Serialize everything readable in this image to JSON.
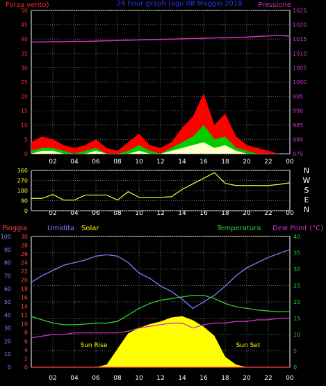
{
  "header": {
    "left_label": "Forza vento)",
    "center_label": "24 hour graph (ago 08 Maggio 2018",
    "right_label": "Pressione"
  },
  "colors": {
    "wind_axis": "#ff2a2a",
    "wind_max": "#ff0000",
    "wind_avg": "#00cc00",
    "wind_min": "#ffffcc",
    "pressure": "#cc33cc",
    "direction": "#ffff33",
    "rain": "#ff4444",
    "humidity": "#8080ff",
    "solar": "#ffff00",
    "temperature": "#33cc33",
    "dewpoint": "#cc33cc",
    "accent_blue": "#3030ff",
    "grid": "#666666"
  },
  "wind_pressure_chart": {
    "type": "area",
    "wind_ticks": [
      "0",
      "5",
      "10",
      "15",
      "20",
      "25",
      "30",
      "35",
      "40",
      "45",
      "50"
    ],
    "pressure_ticks": [
      "975",
      "980",
      "985",
      "990",
      "995",
      "1000",
      "1005",
      "1010",
      "1015",
      "1020",
      "1025"
    ],
    "wind_ylim": [
      0,
      50
    ],
    "pressure_ylim": [
      975,
      1025
    ],
    "hours": [
      0,
      1,
      2,
      3,
      4,
      5,
      6,
      7,
      8,
      9,
      10,
      11,
      12,
      13,
      14,
      15,
      16,
      17,
      18,
      19,
      20,
      21,
      22,
      23,
      24
    ],
    "wind_max": [
      4,
      6,
      5,
      3,
      2,
      3,
      5,
      2,
      1,
      4,
      7,
      3,
      2,
      4,
      9,
      13,
      21,
      10,
      14,
      6,
      3,
      2,
      1,
      0,
      0
    ],
    "wind_avg": [
      1,
      2,
      2,
      1,
      0,
      1,
      2,
      0,
      0,
      1,
      3,
      1,
      0,
      2,
      4,
      6,
      10,
      5,
      6,
      2,
      1,
      0,
      0,
      0,
      0
    ],
    "wind_min": [
      0,
      1,
      1,
      0,
      0,
      0,
      1,
      0,
      0,
      0,
      1,
      0,
      0,
      1,
      2,
      3,
      4,
      2,
      3,
      1,
      0,
      0,
      0,
      0,
      0
    ],
    "pressure": [
      1014.0,
      1014.0,
      1014.1,
      1014.1,
      1014.2,
      1014.2,
      1014.3,
      1014.4,
      1014.5,
      1014.6,
      1014.7,
      1014.8,
      1014.9,
      1015.0,
      1015.1,
      1015.2,
      1015.3,
      1015.4,
      1015.5,
      1015.6,
      1015.7,
      1015.9,
      1016.1,
      1016.3,
      1016.0
    ]
  },
  "direction_chart": {
    "type": "line",
    "ticks": [
      "0",
      "90",
      "180",
      "270",
      "360"
    ],
    "compass": [
      "N",
      "W",
      "S",
      "E",
      "N"
    ],
    "ylim": [
      0,
      360
    ],
    "hours": [
      0,
      1,
      2,
      3,
      4,
      5,
      6,
      7,
      8,
      9,
      10,
      11,
      12,
      13,
      14,
      15,
      16,
      17,
      18,
      19,
      20,
      21,
      22,
      23,
      24
    ],
    "direction": [
      110,
      110,
      145,
      95,
      95,
      140,
      140,
      140,
      95,
      170,
      120,
      120,
      120,
      125,
      190,
      240,
      290,
      340,
      245,
      225,
      225,
      225,
      225,
      235,
      250
    ]
  },
  "weather_chart": {
    "type": "line",
    "labels": {
      "rain": "Pioggia",
      "humidity": "Umidita",
      "solar": "Solar",
      "temperature": "Temperatura",
      "dewpoint": "Dew Point (°C)"
    },
    "humidity_ticks": [
      "0",
      "10",
      "20",
      "30",
      "40",
      "50",
      "60",
      "70",
      "80",
      "90",
      "100"
    ],
    "rain_ticks": [
      "0",
      "2",
      "4",
      "6",
      "8",
      "10",
      "12",
      "14",
      "16",
      "18",
      "20",
      "22",
      "24",
      "26",
      "28",
      "30"
    ],
    "temp_ticks": [
      "0",
      "5",
      "10",
      "15",
      "20",
      "25",
      "30",
      "35",
      "40"
    ],
    "humidity_ylim": [
      0,
      100
    ],
    "rain_ylim": [
      0,
      30
    ],
    "temp_ylim": [
      0,
      40
    ],
    "annotations": {
      "sunrise": "Sun Rise",
      "sunset": "Sun Set"
    },
    "x_ticks": [
      "02",
      "04",
      "06",
      "08",
      "10",
      "12",
      "14",
      "16",
      "18",
      "20",
      "22",
      "00"
    ],
    "hours": [
      0,
      1,
      2,
      3,
      4,
      5,
      6,
      7,
      8,
      9,
      10,
      11,
      12,
      13,
      14,
      15,
      16,
      17,
      18,
      19,
      20,
      21,
      22,
      23,
      24
    ],
    "humidity": [
      65,
      70,
      74,
      78,
      80,
      82,
      85,
      86,
      85,
      80,
      72,
      68,
      62,
      58,
      52,
      45,
      50,
      55,
      62,
      70,
      76,
      80,
      84,
      87,
      90
    ],
    "temperature": [
      15.5,
      14.5,
      13.5,
      13,
      13,
      13.2,
      13.5,
      13.5,
      14,
      16,
      18,
      19.5,
      20.5,
      21,
      21.5,
      22,
      22,
      21,
      19.5,
      18.5,
      18,
      17.5,
      17.2,
      17,
      17
    ],
    "dewpoint": [
      9,
      9.5,
      10,
      10,
      10.5,
      10.5,
      10.5,
      10.5,
      10.5,
      11,
      12,
      12.5,
      13,
      13.5,
      13.5,
      12,
      13,
      13.5,
      13.5,
      14,
      14,
      14.5,
      14.5,
      15,
      15
    ],
    "solar_pct": [
      0,
      0,
      0,
      0,
      0,
      0,
      0,
      2,
      14,
      26,
      30,
      33,
      35,
      38,
      39,
      36,
      31,
      24,
      8,
      2,
      0,
      0,
      0,
      0,
      0
    ],
    "rain": [
      0,
      0,
      0,
      0,
      0,
      0,
      0,
      0,
      0,
      0,
      0,
      0,
      0,
      0,
      0,
      0,
      0,
      0,
      0,
      0,
      0,
      0,
      0,
      0,
      0
    ]
  },
  "x_ticks": [
    "02",
    "04",
    "06",
    "08",
    "10",
    "12",
    "14",
    "16",
    "18",
    "20",
    "22",
    "00"
  ]
}
